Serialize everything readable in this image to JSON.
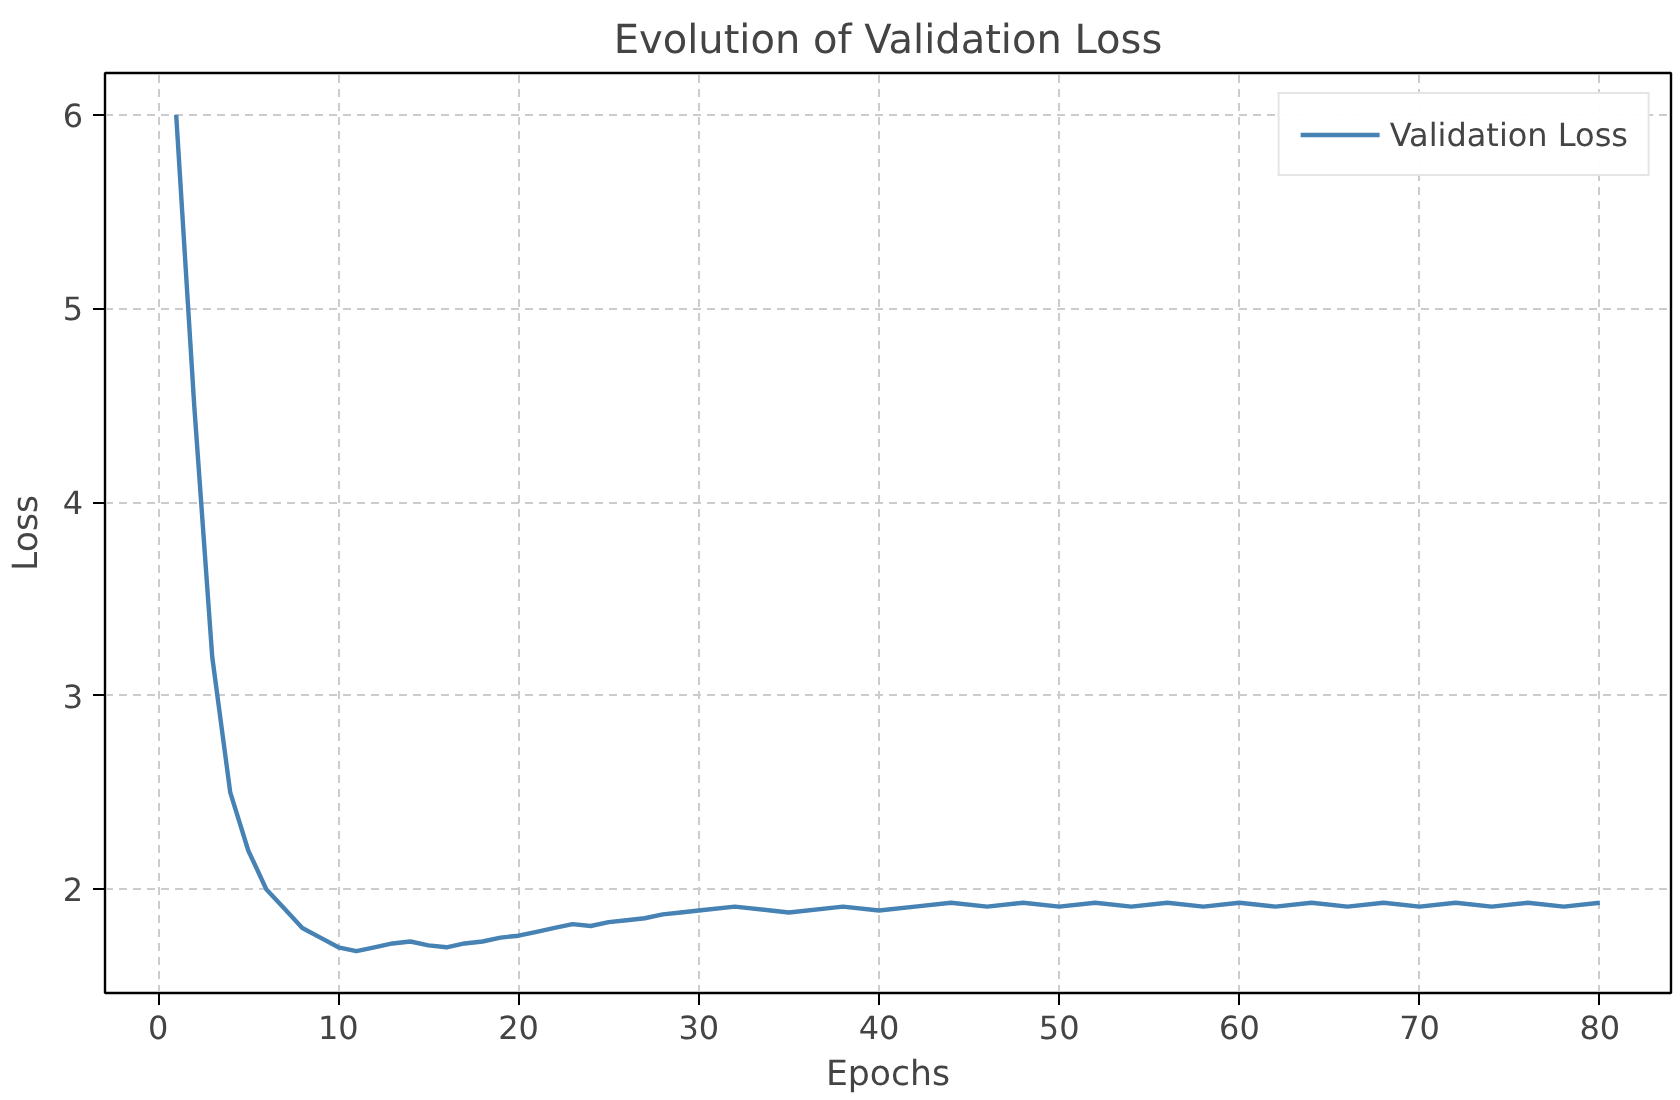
{
  "chart_data": {
    "type": "line",
    "title": "Evolution of Validation Loss",
    "xlabel": "Epochs",
    "ylabel": "Loss",
    "x": [
      1,
      2,
      3,
      4,
      5,
      6,
      7,
      8,
      9,
      10,
      11,
      12,
      13,
      14,
      15,
      16,
      17,
      18,
      19,
      20,
      21,
      22,
      23,
      24,
      25,
      26,
      27,
      28,
      29,
      30,
      32,
      35,
      38,
      40,
      42,
      44,
      46,
      48,
      50,
      52,
      54,
      56,
      58,
      60,
      62,
      64,
      66,
      68,
      70,
      72,
      74,
      76,
      78,
      80
    ],
    "series": [
      {
        "name": "Validation Loss",
        "color": "#4682b4",
        "values": [
          6.0,
          4.5,
          3.2,
          2.5,
          2.2,
          2.0,
          1.9,
          1.8,
          1.75,
          1.7,
          1.68,
          1.7,
          1.72,
          1.73,
          1.71,
          1.7,
          1.72,
          1.73,
          1.75,
          1.76,
          1.78,
          1.8,
          1.82,
          1.81,
          1.83,
          1.84,
          1.85,
          1.87,
          1.88,
          1.89,
          1.91,
          1.88,
          1.91,
          1.89,
          1.91,
          1.93,
          1.91,
          1.93,
          1.91,
          1.93,
          1.91,
          1.93,
          1.91,
          1.93,
          1.91,
          1.93,
          1.91,
          1.93,
          1.91,
          1.93,
          1.91,
          1.93,
          1.91,
          1.93
        ]
      }
    ],
    "xlim": [
      -2.95,
      83.95
    ],
    "ylim": [
      1.464,
      6.216
    ],
    "xticks": [
      0,
      10,
      20,
      30,
      40,
      50,
      60,
      70,
      80
    ],
    "yticks": [
      2,
      3,
      4,
      5,
      6
    ],
    "grid": true,
    "legend": "top right",
    "marker": "none",
    "line_style": "solid"
  }
}
